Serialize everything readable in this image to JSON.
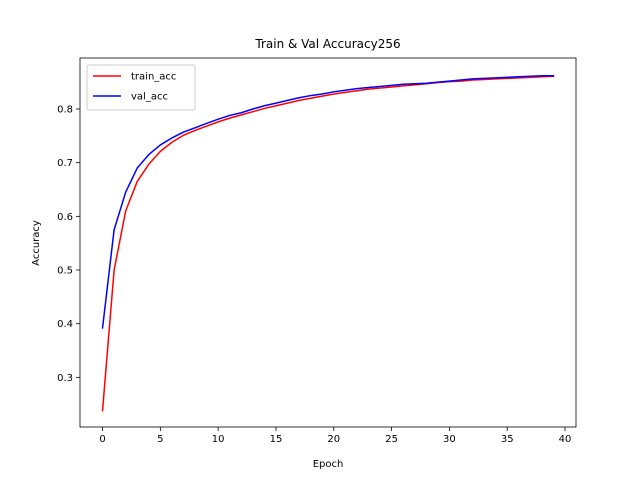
{
  "chart_data": {
    "type": "line",
    "title": "Train & Val Accuracy256",
    "xlabel": "Epoch",
    "ylabel": "Accuracy",
    "xlim": [
      -1.95,
      40.95
    ],
    "ylim": [
      0.2075,
      0.895
    ],
    "xticks": [
      0,
      5,
      10,
      15,
      20,
      25,
      30,
      35,
      40
    ],
    "yticks": [
      0.3,
      0.4,
      0.5,
      0.6,
      0.7,
      0.8
    ],
    "grid": false,
    "legend_position": "top-left",
    "x": [
      0,
      1,
      2,
      3,
      4,
      5,
      6,
      7,
      8,
      9,
      10,
      11,
      12,
      13,
      14,
      15,
      16,
      17,
      18,
      19,
      20,
      21,
      22,
      23,
      24,
      25,
      26,
      27,
      28,
      29,
      30,
      31,
      32,
      33,
      34,
      35,
      36,
      37,
      38,
      39
    ],
    "series": [
      {
        "name": "train_acc",
        "color": "#ff0000",
        "values": [
          0.238,
          0.5,
          0.61,
          0.665,
          0.697,
          0.721,
          0.738,
          0.751,
          0.76,
          0.768,
          0.776,
          0.783,
          0.789,
          0.795,
          0.801,
          0.806,
          0.811,
          0.816,
          0.82,
          0.824,
          0.828,
          0.831,
          0.834,
          0.837,
          0.839,
          0.841,
          0.843,
          0.845,
          0.847,
          0.849,
          0.851,
          0.852,
          0.854,
          0.855,
          0.856,
          0.857,
          0.858,
          0.859,
          0.86,
          0.861
        ]
      },
      {
        "name": "val_acc",
        "color": "#0000ff",
        "values": [
          0.392,
          0.575,
          0.645,
          0.69,
          0.715,
          0.733,
          0.746,
          0.757,
          0.765,
          0.773,
          0.781,
          0.788,
          0.793,
          0.8,
          0.806,
          0.811,
          0.816,
          0.821,
          0.825,
          0.828,
          0.832,
          0.835,
          0.838,
          0.84,
          0.842,
          0.844,
          0.846,
          0.847,
          0.848,
          0.85,
          0.852,
          0.854,
          0.856,
          0.857,
          0.858,
          0.859,
          0.86,
          0.861,
          0.862,
          0.862
        ]
      }
    ]
  }
}
